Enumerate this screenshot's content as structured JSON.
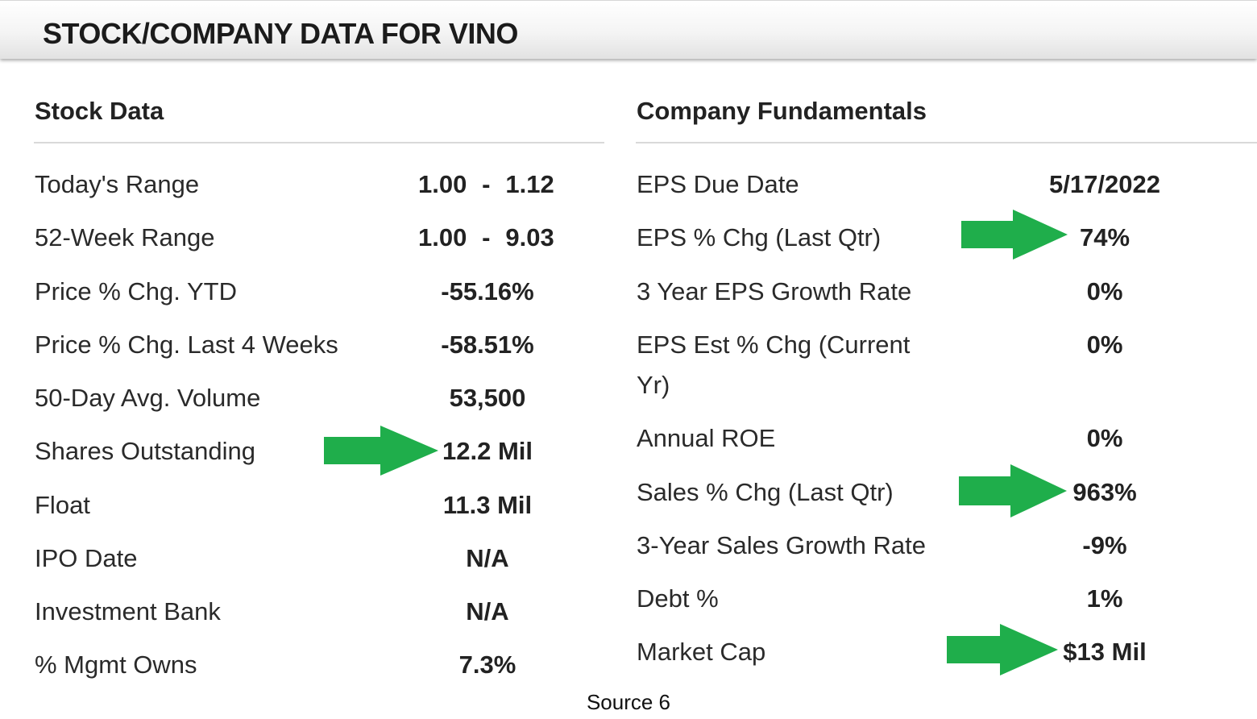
{
  "header": {
    "title": "STOCK/COMPANY DATA FOR VINO"
  },
  "stock_data": {
    "title": "Stock Data",
    "rows": [
      {
        "label": "Today's Range",
        "low": "1.00",
        "dash": "-",
        "high": "1.12"
      },
      {
        "label": "52-Week Range",
        "low": "1.00",
        "dash": "-",
        "high": "9.03"
      },
      {
        "label": "Price % Chg. YTD",
        "value": "-55.16%"
      },
      {
        "label": "Price % Chg. Last 4 Weeks",
        "value": "-58.51%"
      },
      {
        "label": "50-Day Avg. Volume",
        "value": "53,500"
      },
      {
        "label": "Shares Outstanding",
        "value": "12.2 Mil"
      },
      {
        "label": "Float",
        "value": "11.3 Mil"
      },
      {
        "label": "IPO Date",
        "value": "N/A"
      },
      {
        "label": "Investment Bank",
        "value": "N/A"
      },
      {
        "label": "% Mgmt Owns",
        "value": "7.3%"
      }
    ]
  },
  "company_fundamentals": {
    "title": "Company Fundamentals",
    "rows": [
      {
        "label": "EPS Due Date",
        "value": "5/17/2022"
      },
      {
        "label": "EPS % Chg (Last Qtr)",
        "value": "74%"
      },
      {
        "label": "3 Year EPS Growth Rate",
        "value": "0%"
      },
      {
        "label": "EPS Est % Chg (Current",
        "label_line2": "Yr)",
        "value": "0%"
      },
      {
        "label": "Annual ROE",
        "value": "0%"
      },
      {
        "label": "Sales % Chg (Last Qtr)",
        "value": "963%"
      },
      {
        "label": "3-Year Sales Growth Rate",
        "value": "-9%"
      },
      {
        "label": "Debt %",
        "value": "1%"
      },
      {
        "label": "Market Cap",
        "value": "$13 Mil"
      }
    ]
  },
  "highlight_arrow": {
    "icon": "right-arrow-icon",
    "color": "#1fae4b"
  },
  "footer": {
    "source": "Source 6"
  }
}
